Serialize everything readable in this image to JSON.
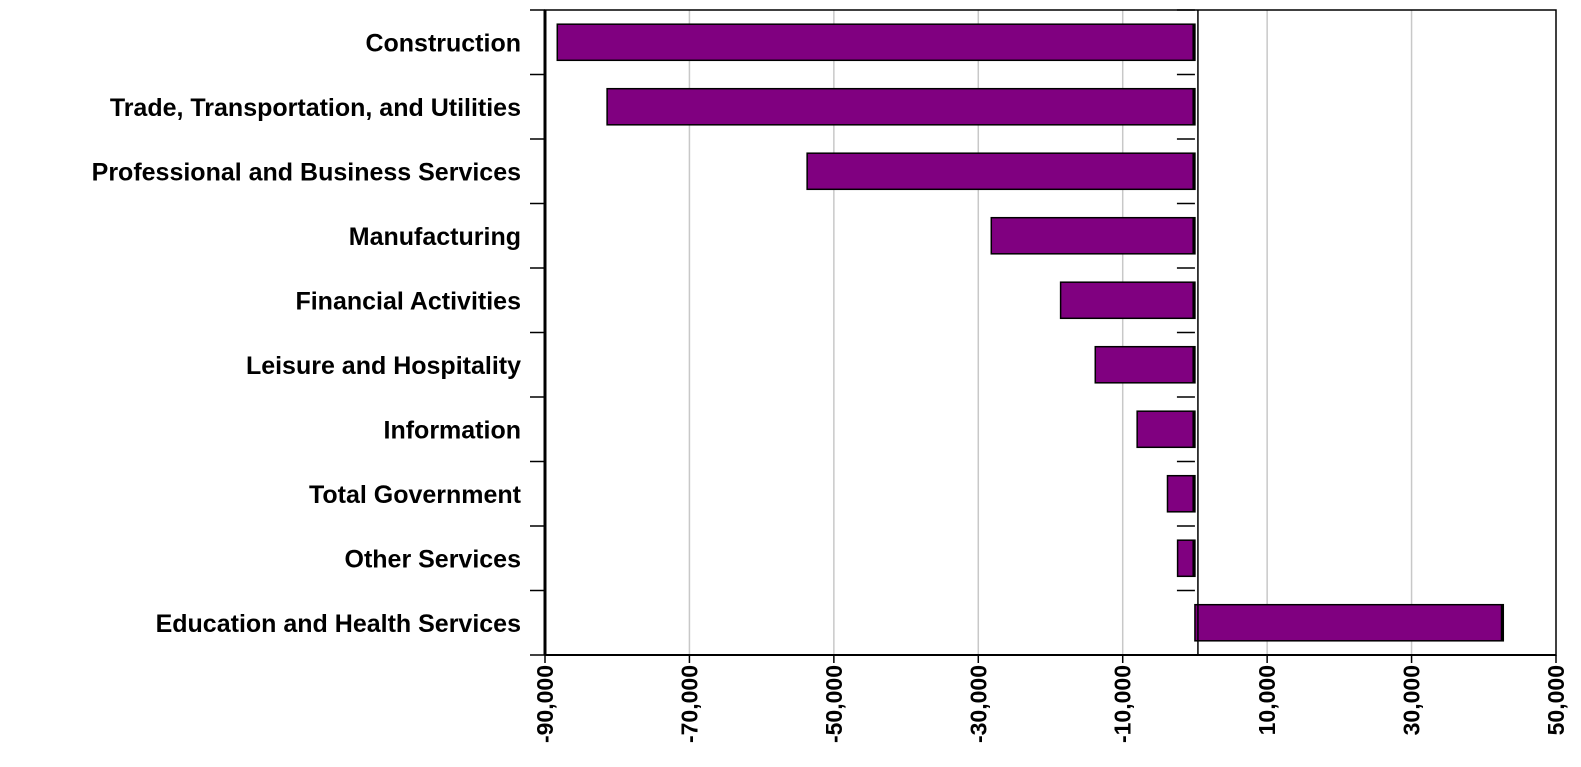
{
  "chart_data": {
    "type": "bar",
    "orientation": "horizontal",
    "title": "",
    "xlabel": "",
    "ylabel": "",
    "categories": [
      "Construction",
      "Trade, Transportation, and Utilities",
      "Professional and Business Services",
      "Manufacturing",
      "Financial Activities",
      "Leisure and Hospitality",
      "Information",
      "Total Government",
      "Other Services",
      "Education and Health Services"
    ],
    "values": [
      -88300,
      -81400,
      -53700,
      -28200,
      -18600,
      -13800,
      -8000,
      -3800,
      -2400,
      42700
    ],
    "xlim": [
      -90000,
      50000
    ],
    "xticks": [
      -90000,
      -70000,
      -50000,
      -30000,
      -10000,
      10000,
      30000,
      50000
    ],
    "xtick_labels": [
      "-90,000",
      "-70,000",
      "-50,000",
      "-30,000",
      "-10,000",
      "10,000",
      "30,000",
      "50,000"
    ],
    "grid": "vertical",
    "bar_color": "#800080"
  }
}
